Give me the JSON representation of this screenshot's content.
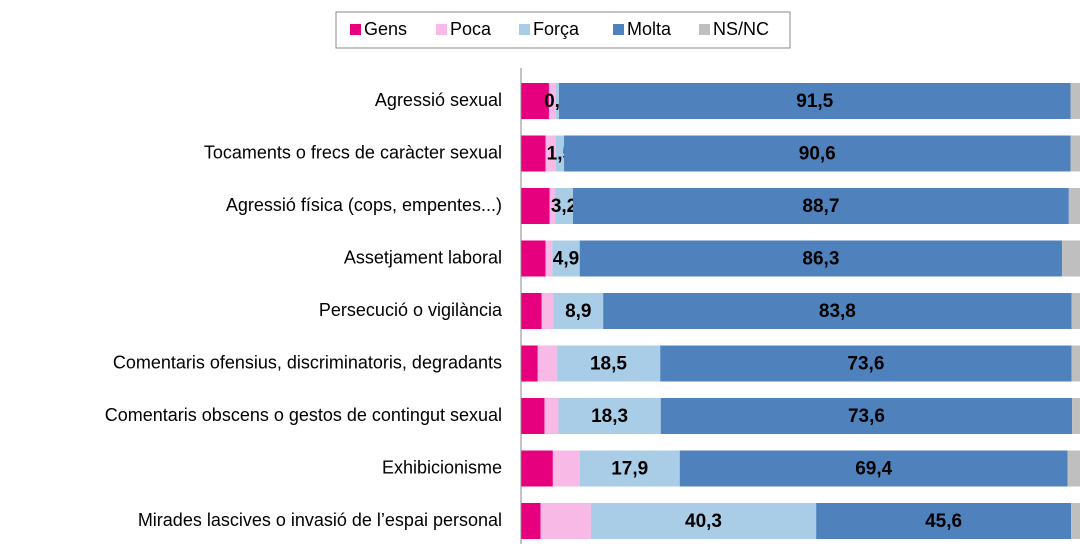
{
  "chart_data": {
    "type": "stacked_barh",
    "categories": [
      "Agressió sexual",
      "Tocaments o frecs de caràcter sexual",
      "Agressió física (cops, empentes...)",
      "Assetjament laboral",
      "Persecució o vigilància",
      "Comentaris ofensius, discriminatoris, degradants",
      "Comentaris obscens o gestos de contingut sexual",
      "Exhibicionisme",
      "Mirades lascives o invasió de l’espai personal"
    ],
    "xlim": [
      0,
      100
    ],
    "legend": "top",
    "series": [
      {
        "name": "Gens",
        "color": "#e6007e",
        "values": [
          5.0,
          4.4,
          5.1,
          4.4,
          3.7,
          3.0,
          4.2,
          5.7,
          3.5
        ]
      },
      {
        "name": "Poca",
        "color": "#f9b9e6",
        "values": [
          1.2,
          1.8,
          1.0,
          1.2,
          2.1,
          3.4,
          2.5,
          4.8,
          9.0
        ]
      },
      {
        "name": "Força",
        "color": "#a9cde6",
        "values": [
          0.6,
          1.5,
          3.2,
          4.9,
          8.9,
          18.5,
          18.3,
          17.9,
          40.3
        ],
        "value_labels": [
          "0,6",
          "1,5",
          "3,2",
          "4,9",
          "8,9",
          "18,5",
          "18,3",
          "17,9",
          "40,3"
        ]
      },
      {
        "name": "Molta",
        "color": "#4f81bd",
        "values": [
          91.5,
          90.6,
          88.7,
          86.3,
          83.8,
          73.6,
          73.6,
          69.4,
          45.6
        ],
        "value_labels": [
          "91,5",
          "90,6",
          "88,7",
          "86,3",
          "83,8",
          "73,6",
          "73,6",
          "69,4",
          "45,6"
        ]
      },
      {
        "name": "NS/NC",
        "color": "#bfbfbf",
        "values": [
          1.7,
          1.7,
          2.0,
          3.2,
          1.5,
          1.5,
          1.4,
          2.2,
          1.6
        ]
      }
    ]
  }
}
